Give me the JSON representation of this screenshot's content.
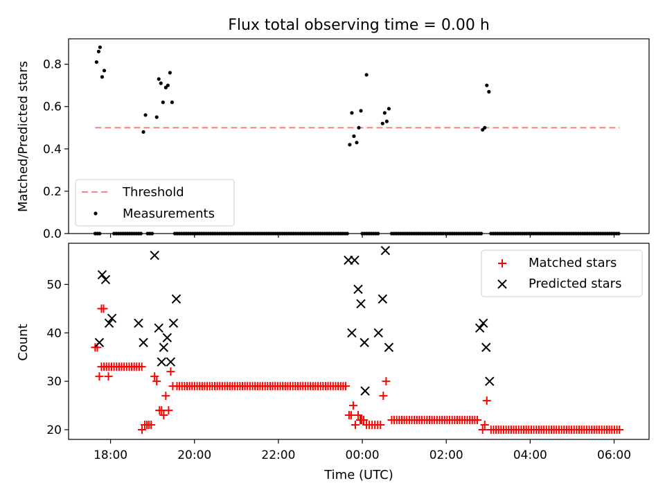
{
  "chart_data": [
    {
      "type": "scatter",
      "title": "Flux total observing time = 0.00 h",
      "xlabel": "",
      "ylabel": "Matched/Predicted stars",
      "xlim": [
        "17:00",
        "06:50"
      ],
      "ylim": [
        0,
        0.92
      ],
      "yticks": [
        "0.0",
        "0.2",
        "0.4",
        "0.6",
        "0.8"
      ],
      "legend_position": "lower-left",
      "grid": false,
      "threshold": {
        "name": "Threshold",
        "value": 0.5,
        "x_start": "17:38",
        "x_end": "06:08",
        "color": "#ff8080",
        "style": "dashed"
      },
      "series": [
        {
          "name": "Measurements",
          "color": "#000000",
          "marker": "dot",
          "points": [
            [
              "17:40",
              0.81
            ],
            [
              "17:43",
              0.86
            ],
            [
              "17:45",
              0.88
            ],
            [
              "17:48",
              0.74
            ],
            [
              "17:51",
              0.77
            ],
            [
              "18:47",
              0.48
            ],
            [
              "18:50",
              0.56
            ],
            [
              "19:06",
              0.55
            ],
            [
              "19:09",
              0.73
            ],
            [
              "19:12",
              0.71
            ],
            [
              "19:15",
              0.62
            ],
            [
              "19:19",
              0.69
            ],
            [
              "19:22",
              0.7
            ],
            [
              "19:25",
              0.76
            ],
            [
              "19:28",
              0.62
            ],
            [
              "23:42",
              0.42
            ],
            [
              "23:45",
              0.57
            ],
            [
              "23:48",
              0.46
            ],
            [
              "23:52",
              0.43
            ],
            [
              "23:55",
              0.5
            ],
            [
              "23:58",
              0.58
            ],
            [
              "00:06",
              0.75
            ],
            [
              "00:29",
              0.52
            ],
            [
              "00:32",
              0.57
            ],
            [
              "00:35",
              0.53
            ],
            [
              "00:38",
              0.59
            ],
            [
              "02:52",
              0.49
            ],
            [
              "02:55",
              0.5
            ],
            [
              "02:58",
              0.7
            ],
            [
              "03:01",
              0.67
            ]
          ],
          "zero_segments": [
            [
              "17:38",
              "17:46"
            ],
            [
              "18:05",
              "18:45"
            ],
            [
              "18:53",
              "19:00"
            ],
            [
              "19:32",
              "23:40"
            ],
            [
              "00:00",
              "00:24"
            ],
            [
              "00:42",
              "02:50"
            ],
            [
              "03:04",
              "06:08"
            ]
          ]
        }
      ]
    },
    {
      "type": "scatter",
      "title": "",
      "xlabel": "Time (UTC)",
      "ylabel": "Count",
      "xlim": [
        "17:00",
        "06:50"
      ],
      "ylim": [
        18,
        58.5
      ],
      "yticks": [
        "20",
        "30",
        "40",
        "50"
      ],
      "xticks": [
        "18:00",
        "20:00",
        "22:00",
        "00:00",
        "02:00",
        "04:00",
        "06:00"
      ],
      "legend_position": "upper-right",
      "grid": false,
      "series": [
        {
          "name": "Matched stars",
          "color": "#ff0000",
          "marker": "plus",
          "segments": [
            {
              "from": "17:47",
              "to": "18:45",
              "value": 33
            },
            {
              "from": "19:35",
              "to": "23:37",
              "value": 29
            },
            {
              "from": "00:42",
              "to": "02:45",
              "value": 22
            },
            {
              "from": "03:04",
              "to": "06:08",
              "value": 20
            }
          ],
          "points": [
            [
              "17:38",
              37
            ],
            [
              "17:41",
              37
            ],
            [
              "17:44",
              31
            ],
            [
              "17:47",
              45
            ],
            [
              "17:50",
              45
            ],
            [
              "17:57",
              31
            ],
            [
              "18:45",
              20
            ],
            [
              "18:49",
              21
            ],
            [
              "18:52",
              21
            ],
            [
              "18:55",
              21
            ],
            [
              "18:58",
              21
            ],
            [
              "19:03",
              31
            ],
            [
              "19:06",
              30
            ],
            [
              "19:10",
              24
            ],
            [
              "19:13",
              24
            ],
            [
              "19:16",
              23
            ],
            [
              "19:19",
              27
            ],
            [
              "19:23",
              24
            ],
            [
              "19:26",
              32
            ],
            [
              "19:29",
              29
            ],
            [
              "23:41",
              23
            ],
            [
              "23:44",
              23
            ],
            [
              "23:47",
              25
            ],
            [
              "23:50",
              21
            ],
            [
              "23:54",
              23
            ],
            [
              "23:57",
              22
            ],
            [
              "23:59",
              22
            ],
            [
              "00:02",
              22
            ],
            [
              "00:06",
              21
            ],
            [
              "00:10",
              21
            ],
            [
              "00:14",
              21
            ],
            [
              "00:18",
              21
            ],
            [
              "00:22",
              21
            ],
            [
              "00:26",
              21
            ],
            [
              "00:30",
              27
            ],
            [
              "00:34",
              30
            ],
            [
              "02:52",
              20
            ],
            [
              "02:55",
              21
            ],
            [
              "02:58",
              26
            ]
          ]
        },
        {
          "name": "Predicted stars",
          "color": "#000000",
          "marker": "x",
          "points": [
            [
              "17:44",
              38
            ],
            [
              "17:48",
              52
            ],
            [
              "17:53",
              51
            ],
            [
              "17:58",
              42
            ],
            [
              "18:02",
              43
            ],
            [
              "18:40",
              42
            ],
            [
              "18:47",
              38
            ],
            [
              "19:03",
              56
            ],
            [
              "19:09",
              41
            ],
            [
              "19:13",
              34
            ],
            [
              "19:16",
              37
            ],
            [
              "19:21",
              39
            ],
            [
              "19:26",
              34
            ],
            [
              "19:30",
              42
            ],
            [
              "19:34",
              47
            ],
            [
              "23:40",
              55
            ],
            [
              "23:45",
              40
            ],
            [
              "23:49",
              55
            ],
            [
              "23:54",
              49
            ],
            [
              "23:58",
              46
            ],
            [
              "24:03",
              38
            ],
            [
              "00:04",
              28
            ],
            [
              "00:23",
              40
            ],
            [
              "00:29",
              47
            ],
            [
              "00:33",
              57
            ],
            [
              "00:38",
              37
            ],
            [
              "02:48",
              41
            ],
            [
              "02:53",
              42
            ],
            [
              "02:57",
              37
            ],
            [
              "03:02",
              30
            ]
          ]
        }
      ]
    }
  ]
}
